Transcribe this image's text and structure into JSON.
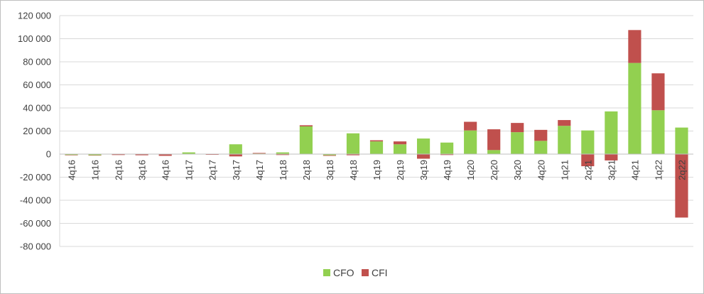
{
  "chart_data": {
    "type": "bar",
    "stacked": true,
    "title": "",
    "xlabel": "",
    "ylabel": "",
    "ylim": [
      -80000,
      120000
    ],
    "yticks": [
      120000,
      100000,
      80000,
      60000,
      40000,
      20000,
      0,
      -20000,
      -40000,
      -60000,
      -80000
    ],
    "ytick_labels": [
      "120 000",
      "100 000",
      "80 000",
      "60 000",
      "40 000",
      "20 000",
      "0",
      "-20 000",
      "-40 000",
      "-60 000",
      "-80 000"
    ],
    "grid": true,
    "legend": "bottom",
    "categories": [
      "4q16",
      "1q16",
      "2q16",
      "3q16",
      "4q16",
      "1q17",
      "2q17",
      "3q17",
      "4q17",
      "1q18",
      "2q18",
      "3q18",
      "4q18",
      "1q19",
      "2q19",
      "3q19",
      "4q19",
      "1q20",
      "2q20",
      "3q20",
      "4q20",
      "1q21",
      "2q21",
      "3q21",
      "4q21",
      "1q22",
      "2q22"
    ],
    "series": [
      {
        "name": "CFO",
        "color": "#92d050",
        "values": [
          -800,
          -1000,
          -300,
          -300,
          -300,
          1500,
          -300,
          8500,
          500,
          1500,
          24000,
          -1000,
          18000,
          11000,
          8500,
          13500,
          10000,
          20500,
          3500,
          19000,
          11500,
          24500,
          20500,
          37000,
          79000,
          38000,
          23000
        ]
      },
      {
        "name": "CFI",
        "color": "#c0504d",
        "values": [
          -200,
          -200,
          -500,
          -700,
          -1200,
          -200,
          -300,
          -2000,
          500,
          -800,
          1000,
          -500,
          -1000,
          1000,
          2500,
          -4000,
          -800,
          7500,
          18000,
          8000,
          9500,
          5000,
          -10500,
          -5500,
          28500,
          32000,
          -55000
        ]
      }
    ]
  }
}
